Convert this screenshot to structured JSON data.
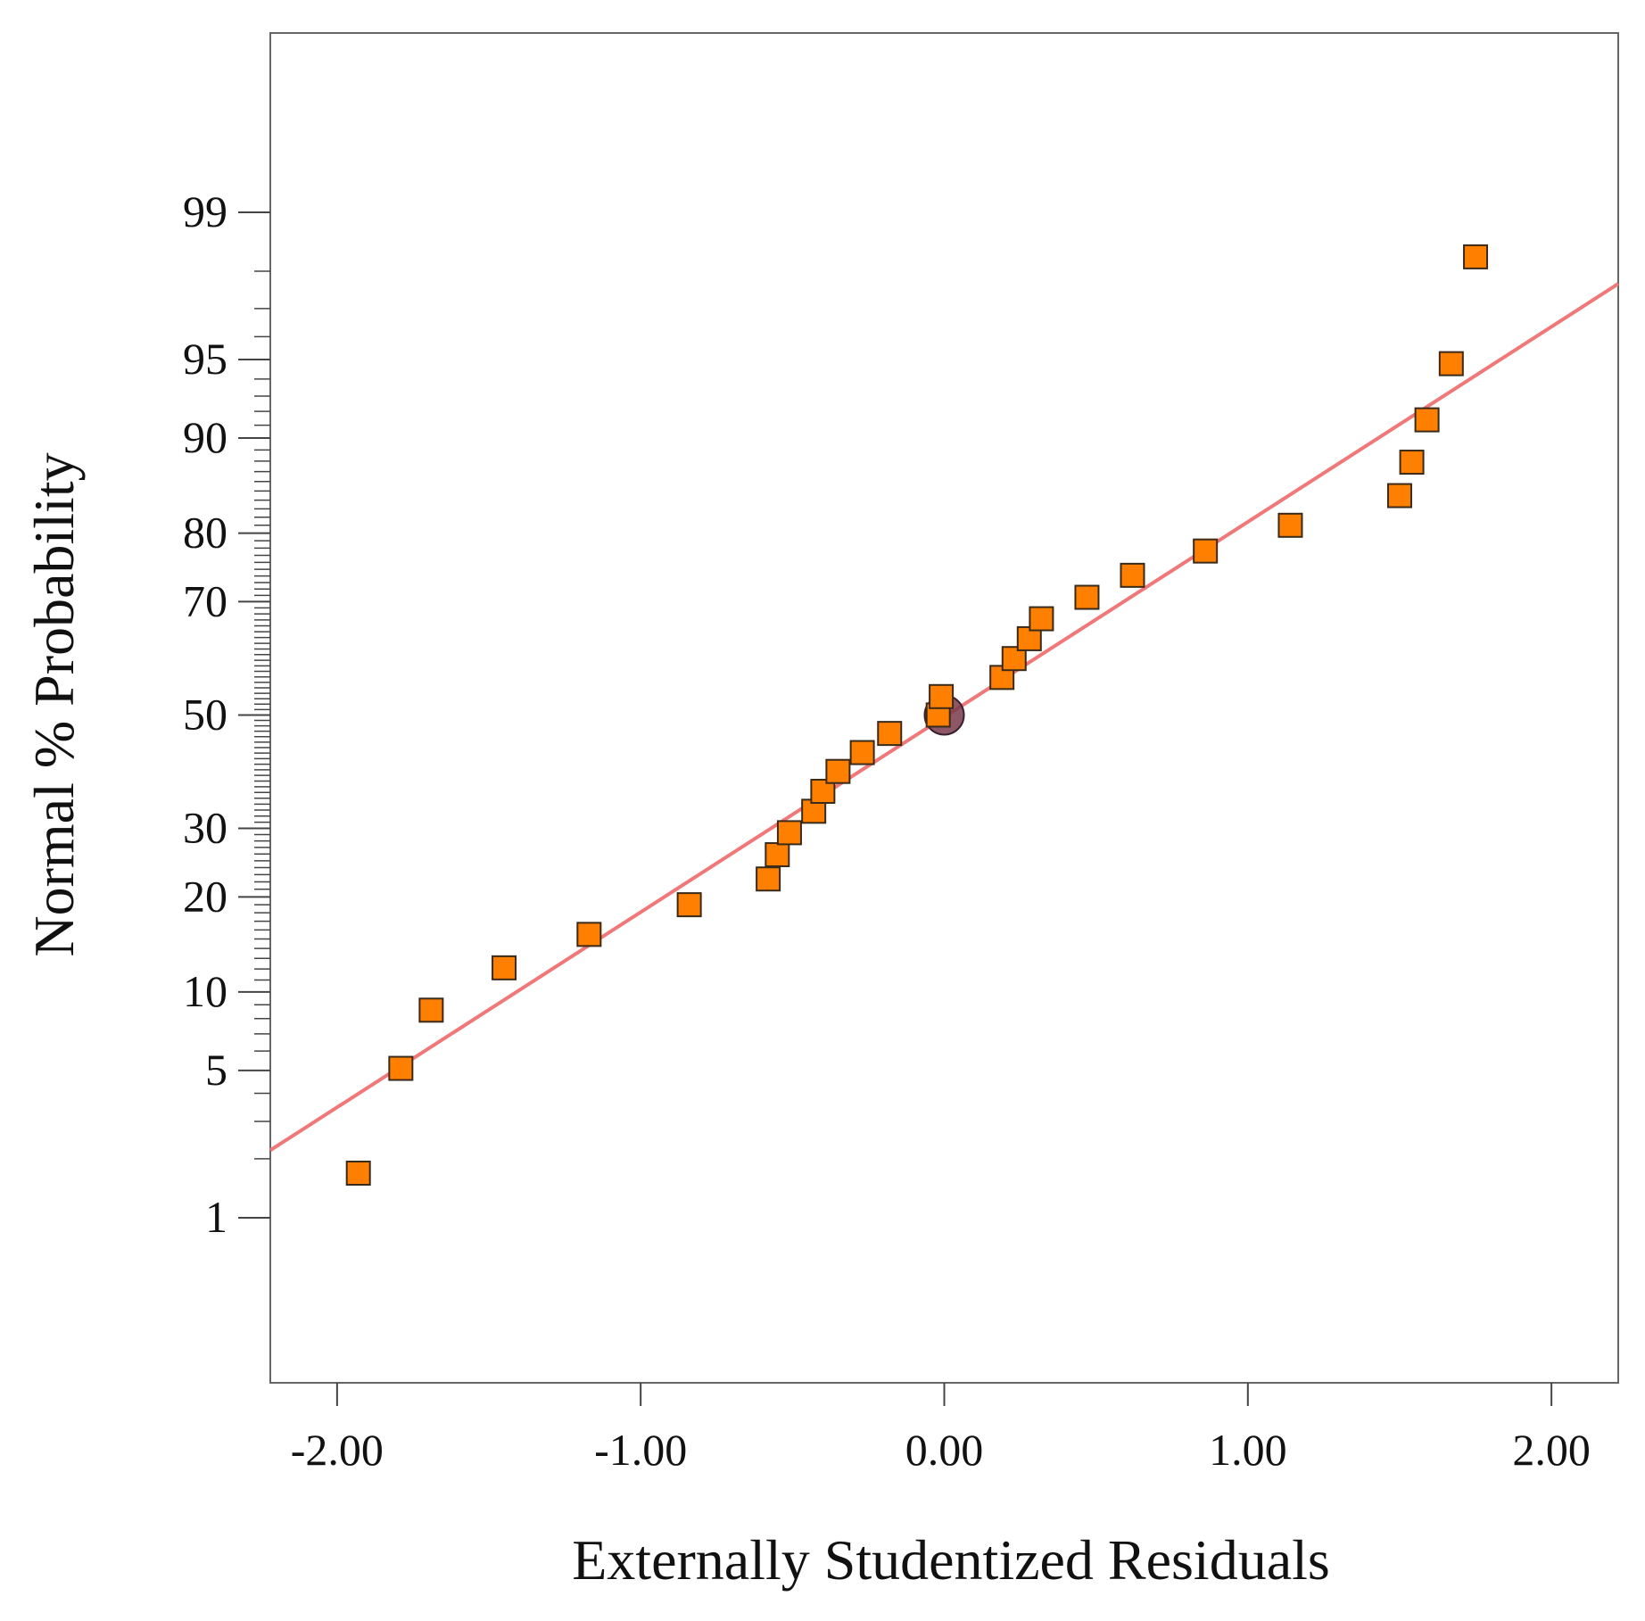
{
  "chart_data": {
    "type": "scatter",
    "title": "",
    "xlabel": "Externally Studentized Residuals",
    "ylabel": "Normal % Probability",
    "xlim": [
      -2.22,
      2.22
    ],
    "ylim_percent": [
      0.1,
      99.92
    ],
    "y_scale": "normal-probability",
    "x_ticks": [
      -2.0,
      -1.0,
      0.0,
      1.0,
      2.0
    ],
    "x_tick_labels": [
      "-2.00",
      "-1.00",
      "0.00",
      "1.00",
      "2.00"
    ],
    "y_ticks": [
      1,
      5,
      10,
      20,
      30,
      50,
      70,
      80,
      90,
      95,
      99
    ],
    "y_tick_labels": [
      "1",
      "5",
      "10",
      "20",
      "30",
      "50",
      "70",
      "80",
      "90",
      "95",
      "99"
    ],
    "grid": false,
    "legend": "none",
    "colors": {
      "marker_fill": "#ff7f00",
      "marker_stroke": "#3a2a1a",
      "fit_line": "#f07878",
      "highlight_fill": "#7a3a4a",
      "axis": "#444444"
    },
    "fit_line": {
      "x": [
        -2.22,
        2.22
      ],
      "y_percent": [
        2.2,
        97.7
      ]
    },
    "highlight_point": {
      "x": 0.0,
      "y_percent": 50.0
    },
    "series": [
      {
        "name": "Residuals",
        "marker": "square",
        "points": [
          {
            "x": -1.93,
            "y": 1.7
          },
          {
            "x": -1.79,
            "y": 5.1
          },
          {
            "x": -1.69,
            "y": 8.6
          },
          {
            "x": -1.45,
            "y": 12.1
          },
          {
            "x": -1.17,
            "y": 15.5
          },
          {
            "x": -0.84,
            "y": 19.0
          },
          {
            "x": -0.58,
            "y": 22.4
          },
          {
            "x": -0.55,
            "y": 25.9
          },
          {
            "x": -0.51,
            "y": 29.3
          },
          {
            "x": -0.43,
            "y": 32.8
          },
          {
            "x": -0.4,
            "y": 36.2
          },
          {
            "x": -0.35,
            "y": 39.7
          },
          {
            "x": -0.27,
            "y": 43.1
          },
          {
            "x": -0.18,
            "y": 46.6
          },
          {
            "x": -0.02,
            "y": 50.0
          },
          {
            "x": -0.01,
            "y": 53.4
          },
          {
            "x": 0.19,
            "y": 56.9
          },
          {
            "x": 0.23,
            "y": 60.3
          },
          {
            "x": 0.28,
            "y": 63.8
          },
          {
            "x": 0.32,
            "y": 67.2
          },
          {
            "x": 0.47,
            "y": 70.7
          },
          {
            "x": 0.62,
            "y": 74.1
          },
          {
            "x": 0.86,
            "y": 77.6
          },
          {
            "x": 1.14,
            "y": 81.0
          },
          {
            "x": 1.5,
            "y": 84.5
          },
          {
            "x": 1.54,
            "y": 87.9
          },
          {
            "x": 1.59,
            "y": 91.4
          },
          {
            "x": 1.67,
            "y": 94.8
          },
          {
            "x": 1.75,
            "y": 98.3
          }
        ]
      }
    ]
  }
}
